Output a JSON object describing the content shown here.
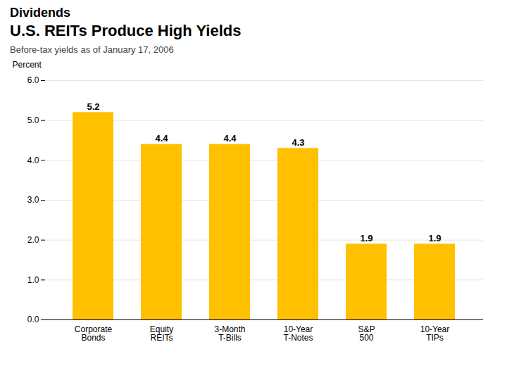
{
  "chart_data": {
    "type": "bar",
    "title": [
      "Dividends",
      "U.S. REITs Produce High Yields"
    ],
    "subtitle": "Before-tax yields as of January 17, 2006",
    "ylabel": "Percent",
    "categories": [
      "Corporate\nBonds",
      "Equity\nREITs",
      "3-Month\nT-Bills",
      "10-Year\nT-Notes",
      "S&P\n500",
      "10-Year\nTIPs"
    ],
    "values": [
      5.2,
      4.4,
      4.4,
      4.3,
      1.9,
      1.9
    ],
    "color": "#FFC000",
    "ylim": [
      0.0,
      6.0
    ],
    "yticks": [
      0.0,
      1.0,
      2.0,
      3.0,
      4.0,
      5.0,
      6.0
    ],
    "grid": true,
    "data_labels": true
  }
}
